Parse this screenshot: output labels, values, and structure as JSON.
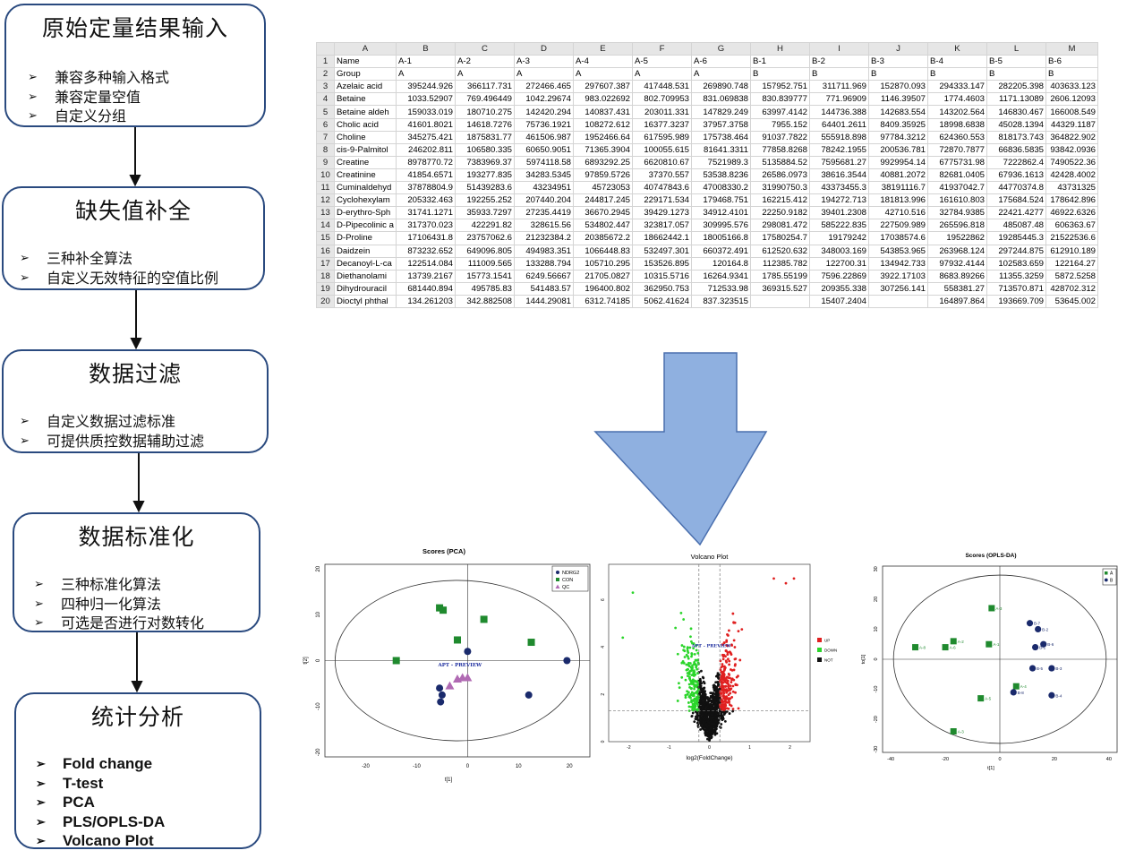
{
  "steps": [
    {
      "title": "原始定量结果输入",
      "bullets": [
        "兼容多种输入格式",
        "兼容定量空值",
        "自定义分组"
      ]
    },
    {
      "title": "缺失值补全",
      "bullets": [
        "三种补全算法",
        "自定义无效特征的空值比例"
      ]
    },
    {
      "title": "数据过滤",
      "bullets": [
        "自定义数据过滤标准",
        "可提供质控数据辅助过滤"
      ]
    },
    {
      "title": "数据标准化",
      "bullets": [
        "三种标准化算法",
        "四种归一化算法",
        "可选是否进行对数转化"
      ]
    },
    {
      "title": "统计分析",
      "bullets": [
        "Fold change",
        "T-test",
        "PCA",
        "PLS/OPLS-DA",
        "Volcano Plot"
      ]
    }
  ],
  "bullet_symbol": "➢",
  "spreadsheet": {
    "col_letters": [
      "A",
      "B",
      "C",
      "D",
      "E",
      "F",
      "G",
      "H",
      "I",
      "J",
      "K",
      "L",
      "M"
    ],
    "rows": [
      [
        "Name",
        "A-1",
        "A-2",
        "A-3",
        "A-4",
        "A-5",
        "A-6",
        "B-1",
        "B-2",
        "B-3",
        "B-4",
        "B-5",
        "B-6"
      ],
      [
        "Group",
        "A",
        "A",
        "A",
        "A",
        "A",
        "A",
        "B",
        "B",
        "B",
        "B",
        "B",
        "B"
      ],
      [
        "Azelaic acid",
        "395244.926",
        "366117.731",
        "272466.465",
        "297607.387",
        "417448.531",
        "269890.748",
        "157952.751",
        "311711.969",
        "152870.093",
        "294333.147",
        "282205.398",
        "403633.123"
      ],
      [
        "Betaine",
        "1033.52907",
        "769.496449",
        "1042.29674",
        "983.022692",
        "802.709953",
        "831.069838",
        "830.839777",
        "771.96909",
        "1146.39507",
        "1774.4603",
        "1171.13089",
        "2606.12093"
      ],
      [
        "Betaine aldeh",
        "159033.019",
        "180710.275",
        "142420.294",
        "140837.431",
        "203011.331",
        "147829.249",
        "63997.4142",
        "144736.388",
        "142683.554",
        "143202.564",
        "146830.467",
        "166008.549"
      ],
      [
        "Cholic acid",
        "41601.8021",
        "14618.7276",
        "75736.1921",
        "108272.612",
        "16377.3237",
        "37957.3758",
        "7955.152",
        "64401.2611",
        "8409.35925",
        "18998.6838",
        "45028.1394",
        "44329.1187"
      ],
      [
        "Choline",
        "345275.421",
        "1875831.77",
        "461506.987",
        "1952466.64",
        "617595.989",
        "175738.464",
        "91037.7822",
        "555918.898",
        "97784.3212",
        "624360.553",
        "818173.743",
        "364822.902"
      ],
      [
        "cis-9-Palmitol",
        "246202.811",
        "106580.335",
        "60650.9051",
        "71365.3904",
        "100055.615",
        "81641.3311",
        "77858.8268",
        "78242.1955",
        "200536.781",
        "72870.7877",
        "66836.5835",
        "93842.0936"
      ],
      [
        "Creatine",
        "8978770.72",
        "7383969.37",
        "5974118.58",
        "6893292.25",
        "6620810.67",
        "7521989.3",
        "5135884.52",
        "7595681.27",
        "9929954.14",
        "6775731.98",
        "7222862.4",
        "7490522.36"
      ],
      [
        "Creatinine",
        "41854.6571",
        "193277.835",
        "34283.5345",
        "97859.5726",
        "37370.557",
        "53538.8236",
        "26586.0973",
        "38616.3544",
        "40881.2072",
        "82681.0405",
        "67936.1613",
        "42428.4002"
      ],
      [
        "Cuminaldehyd",
        "37878804.9",
        "51439283.6",
        "43234951",
        "45723053",
        "40747843.6",
        "47008330.2",
        "31990750.3",
        "43373455.3",
        "38191116.7",
        "41937042.7",
        "44770374.8",
        "43731325"
      ],
      [
        "Cyclohexylam",
        "205332.463",
        "192255.252",
        "207440.204",
        "244817.245",
        "229171.534",
        "179468.751",
        "162215.412",
        "194272.713",
        "181813.996",
        "161610.803",
        "175684.524",
        "178642.896"
      ],
      [
        "D-erythro-Sph",
        "31741.1271",
        "35933.7297",
        "27235.4419",
        "36670.2945",
        "39429.1273",
        "34912.4101",
        "22250.9182",
        "39401.2308",
        "42710.516",
        "32784.9385",
        "22421.4277",
        "46922.6326"
      ],
      [
        "D-Pipecolinic a",
        "317370.023",
        "422291.82",
        "328615.56",
        "534802.447",
        "323817.057",
        "309995.576",
        "298081.472",
        "585222.835",
        "227509.989",
        "265596.818",
        "485087.48",
        "606363.67"
      ],
      [
        "D-Proline",
        "17106431.8",
        "23757062.6",
        "21232384.2",
        "20385672.2",
        "18662442.1",
        "18005166.8",
        "17580254.7",
        "19179242",
        "17038574.6",
        "19522862",
        "19285445.3",
        "21522536.6"
      ],
      [
        "Daidzein",
        "873232.652",
        "649096.805",
        "494983.351",
        "1066448.83",
        "532497.301",
        "660372.491",
        "612520.632",
        "348003.169",
        "543853.965",
        "263968.124",
        "297244.875",
        "612910.189"
      ],
      [
        "Decanoyl-L-ca",
        "122514.084",
        "111009.565",
        "133288.794",
        "105710.295",
        "153526.895",
        "120164.8",
        "112385.782",
        "122700.31",
        "134942.733",
        "97932.4144",
        "102583.659",
        "122164.27"
      ],
      [
        "Diethanolami",
        "13739.2167",
        "15773.1541",
        "6249.56667",
        "21705.0827",
        "10315.5716",
        "16264.9341",
        "1785.55199",
        "7596.22869",
        "3922.17103",
        "8683.89266",
        "11355.3259",
        "5872.5258"
      ],
      [
        "Dihydrouracil",
        "681440.894",
        "495785.83",
        "541483.57",
        "196400.802",
        "362950.753",
        "712533.98",
        "369315.527",
        "209355.338",
        "307256.141",
        "558381.27",
        "713570.871",
        "428702.312"
      ],
      [
        "Dioctyl phthal",
        "134.261203",
        "342.882508",
        "1444.29081",
        "6312.74185",
        "5062.41624",
        "837.323515",
        "",
        "15407.2404",
        "",
        "164897.864",
        "193669.709",
        "53645.002"
      ]
    ]
  },
  "pca": {
    "title": "Scores (PCA)",
    "xlabel": "t[1]",
    "ylabel": "t[2]",
    "watermark": "APT - PREVIEW",
    "x_ticks": [
      "-20",
      "-10",
      "0",
      "10",
      "20"
    ],
    "y_ticks": [
      "20",
      "10",
      "0",
      "-10",
      "-20"
    ],
    "legend": [
      "NDRG2",
      "CON",
      "QC"
    ],
    "colors": {
      "NDRG2": "#1a2a6c",
      "CON": "#1f8a2e",
      "QC": "#b06ab3"
    },
    "chart_data": {
      "type": "scatter",
      "xlim": [
        -28,
        24
      ],
      "ylim": [
        -21,
        21
      ],
      "series": [
        {
          "name": "NDRG2",
          "points": [
            [
              0,
              2
            ],
            [
              19.5,
              0
            ],
            [
              -5.5,
              -6
            ],
            [
              -5,
              -7.5
            ],
            [
              -5.3,
              -9
            ],
            [
              12,
              -7.5
            ]
          ]
        },
        {
          "name": "CON",
          "points": [
            [
              -14,
              0
            ],
            [
              -5.5,
              11.5
            ],
            [
              -4.8,
              11
            ],
            [
              3.2,
              9
            ],
            [
              -2,
              4.5
            ],
            [
              12.5,
              4
            ]
          ]
        },
        {
          "name": "QC",
          "points": [
            [
              -3.5,
              -5.5
            ],
            [
              -2,
              -4
            ],
            [
              -1,
              -3.7
            ],
            [
              0,
              -3.7
            ]
          ]
        }
      ]
    }
  },
  "volcano": {
    "title": "Volcano Plot",
    "xlabel": "log2(FoldChange)",
    "x_ticks": [
      "-2",
      "-1",
      "0",
      "1",
      "2"
    ],
    "y_ticks": [
      "0",
      "2",
      "4",
      "6"
    ],
    "watermark": "APT - PREVIEW",
    "legend": [
      "UP",
      "DOWN",
      "NOT"
    ],
    "colors": {
      "UP": "#e02020",
      "DOWN": "#2ad52a",
      "NOT": "#111111"
    },
    "chart_data": {
      "type": "scatter",
      "xlim": [
        -2.5,
        2.5
      ],
      "ylim": [
        0,
        7.5
      ],
      "fc_cutoff": [
        -0.26,
        0.26
      ],
      "p_cutoff": 1.3
    }
  },
  "oplsda": {
    "title": "Scores (OPLS-DA)",
    "xlabel": "t[1]",
    "ylabel": "to[1]",
    "x_ticks": [
      "-40",
      "-20",
      "0",
      "20",
      "40"
    ],
    "y_ticks": [
      "30",
      "20",
      "10",
      "0",
      "-10",
      "-20",
      "-30"
    ],
    "legend": [
      "A",
      "B"
    ],
    "colors": {
      "A": "#1f8a2e",
      "B": "#1a2a6c"
    },
    "chart_data": {
      "type": "scatter",
      "xlim": [
        -43,
        43
      ],
      "ylim": [
        -31,
        31
      ],
      "series": [
        {
          "name": "A",
          "points": [
            [
              "A-1",
              -4,
              5
            ],
            [
              "A-2",
              -17,
              6
            ],
            [
              "A-3",
              -3,
              17
            ],
            [
              "A-5",
              -7,
              -13
            ],
            [
              "A-6",
              -20,
              4
            ],
            [
              "A-3",
              -17,
              -24
            ],
            [
              "A-4",
              6,
              -9
            ],
            [
              "A-8",
              -31,
              4
            ]
          ]
        },
        {
          "name": "B",
          "points": [
            [
              "B-7",
              11,
              12
            ],
            [
              "B-2",
              14,
              10
            ],
            [
              "B-6",
              16,
              5
            ],
            [
              "B-1",
              13,
              4
            ],
            [
              "B-3",
              19,
              -3
            ],
            [
              "B-5",
              12,
              -3
            ],
            [
              "B-8",
              5,
              -11
            ],
            [
              "B-4",
              19,
              -12
            ]
          ]
        }
      ]
    }
  }
}
